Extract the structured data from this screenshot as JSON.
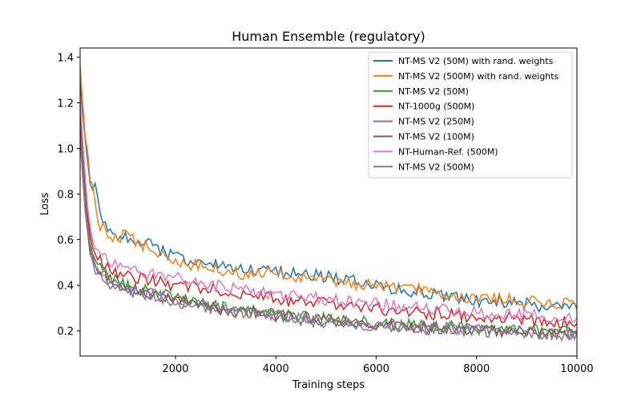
{
  "chart_data": {
    "type": "line",
    "title": "Human Ensemble (regulatory)",
    "xlabel": "Training steps",
    "ylabel": "Loss",
    "xlim": [
      100,
      10000
    ],
    "ylim": [
      0.09,
      1.44
    ],
    "xticks": [
      2000,
      4000,
      6000,
      8000,
      10000
    ],
    "yticks": [
      0.2,
      0.4,
      0.6,
      0.8,
      1.0,
      1.2,
      1.4
    ],
    "xtick_labels": [
      "2000",
      "4000",
      "6000",
      "8000",
      "10000"
    ],
    "ytick_labels": [
      "0.2",
      "0.4",
      "0.6",
      "0.8",
      "1.0",
      "1.2",
      "1.4"
    ],
    "grid": false,
    "legend_position": "top-right",
    "series": [
      {
        "name": "NT-MS V2 (50M) with rand. weights",
        "color": "#1f77b4",
        "x": [
          100,
          200,
          300,
          400,
          500,
          700,
          1000,
          1500,
          2000,
          2500,
          3000,
          3500,
          4000,
          4500,
          5000,
          5500,
          6000,
          6500,
          7000,
          7500,
          8000,
          8500,
          9000,
          9500,
          10000
        ],
        "y": [
          1.29,
          1.02,
          0.86,
          0.83,
          0.69,
          0.62,
          0.61,
          0.58,
          0.52,
          0.5,
          0.48,
          0.46,
          0.46,
          0.45,
          0.44,
          0.42,
          0.4,
          0.38,
          0.37,
          0.35,
          0.33,
          0.33,
          0.32,
          0.3,
          0.3
        ]
      },
      {
        "name": "NT-MS V2 (500M) with rand. weights",
        "color": "#ff7f0e",
        "x": [
          100,
          200,
          300,
          400,
          500,
          700,
          1000,
          1500,
          2000,
          2500,
          3000,
          3500,
          4000,
          4500,
          5000,
          5500,
          6000,
          6500,
          7000,
          7500,
          8000,
          8500,
          9000,
          9500,
          10000
        ],
        "y": [
          1.36,
          1.05,
          0.88,
          0.76,
          0.66,
          0.6,
          0.62,
          0.56,
          0.5,
          0.49,
          0.46,
          0.45,
          0.45,
          0.43,
          0.42,
          0.41,
          0.4,
          0.38,
          0.38,
          0.36,
          0.34,
          0.34,
          0.33,
          0.32,
          0.32
        ]
      },
      {
        "name": "NT-MS V2 (50M)",
        "color": "#2ca02c",
        "x": [
          100,
          200,
          300,
          400,
          500,
          700,
          1000,
          1500,
          2000,
          2500,
          3000,
          3500,
          4000,
          4500,
          5000,
          5500,
          6000,
          6500,
          7000,
          7500,
          8000,
          8500,
          9000,
          9500,
          10000
        ],
        "y": [
          1.12,
          0.78,
          0.58,
          0.5,
          0.48,
          0.43,
          0.4,
          0.37,
          0.35,
          0.32,
          0.3,
          0.29,
          0.27,
          0.26,
          0.25,
          0.24,
          0.24,
          0.23,
          0.22,
          0.22,
          0.21,
          0.21,
          0.2,
          0.2,
          0.19
        ]
      },
      {
        "name": "NT-1000g (500M)",
        "color": "#d62728",
        "x": [
          100,
          200,
          300,
          400,
          500,
          700,
          1000,
          1500,
          2000,
          2500,
          3000,
          3500,
          4000,
          4500,
          5000,
          5500,
          6000,
          6500,
          7000,
          7500,
          8000,
          8500,
          9000,
          9500,
          10000
        ],
        "y": [
          1.2,
          0.82,
          0.62,
          0.55,
          0.52,
          0.46,
          0.44,
          0.42,
          0.4,
          0.39,
          0.37,
          0.36,
          0.34,
          0.33,
          0.32,
          0.31,
          0.3,
          0.29,
          0.28,
          0.27,
          0.26,
          0.26,
          0.25,
          0.24,
          0.24
        ]
      },
      {
        "name": "NT-MS V2 (250M)",
        "color": "#9467bd",
        "x": [
          100,
          200,
          300,
          400,
          500,
          700,
          1000,
          1500,
          2000,
          2500,
          3000,
          3500,
          4000,
          4500,
          5000,
          5500,
          6000,
          6500,
          7000,
          7500,
          8000,
          8500,
          9000,
          9500,
          10000
        ],
        "y": [
          1.04,
          0.72,
          0.54,
          0.46,
          0.45,
          0.41,
          0.38,
          0.36,
          0.33,
          0.31,
          0.29,
          0.28,
          0.26,
          0.25,
          0.24,
          0.23,
          0.22,
          0.22,
          0.21,
          0.21,
          0.2,
          0.2,
          0.19,
          0.19,
          0.18
        ]
      },
      {
        "name": "NT-MS V2 (100M)",
        "color": "#8c564b",
        "x": [
          100,
          200,
          300,
          400,
          500,
          700,
          1000,
          1500,
          2000,
          2500,
          3000,
          3500,
          4000,
          4500,
          5000,
          5500,
          6000,
          6500,
          7000,
          7500,
          8000,
          8500,
          9000,
          9500,
          10000
        ],
        "y": [
          1.08,
          0.74,
          0.56,
          0.47,
          0.46,
          0.42,
          0.39,
          0.36,
          0.34,
          0.31,
          0.29,
          0.28,
          0.27,
          0.26,
          0.25,
          0.24,
          0.23,
          0.22,
          0.22,
          0.21,
          0.21,
          0.2,
          0.2,
          0.19,
          0.19
        ]
      },
      {
        "name": "NT-Human-Ref. (500M)",
        "color": "#e377c2",
        "x": [
          100,
          200,
          300,
          400,
          500,
          700,
          1000,
          1500,
          2000,
          2500,
          3000,
          3500,
          4000,
          4500,
          5000,
          5500,
          6000,
          6500,
          7000,
          7500,
          8000,
          8500,
          9000,
          9500,
          10000
        ],
        "y": [
          1.22,
          0.86,
          0.66,
          0.58,
          0.54,
          0.5,
          0.47,
          0.45,
          0.43,
          0.41,
          0.39,
          0.37,
          0.36,
          0.35,
          0.34,
          0.33,
          0.32,
          0.31,
          0.3,
          0.29,
          0.28,
          0.28,
          0.27,
          0.26,
          0.26
        ]
      },
      {
        "name": "NT-MS V2 (500M)",
        "color": "#7f7f7f",
        "x": [
          100,
          200,
          300,
          400,
          500,
          700,
          1000,
          1500,
          2000,
          2500,
          3000,
          3500,
          4000,
          4500,
          5000,
          5500,
          6000,
          6500,
          7000,
          7500,
          8000,
          8500,
          9000,
          9500,
          10000
        ],
        "y": [
          1.06,
          0.73,
          0.55,
          0.47,
          0.45,
          0.41,
          0.38,
          0.36,
          0.33,
          0.31,
          0.29,
          0.28,
          0.27,
          0.25,
          0.24,
          0.23,
          0.22,
          0.22,
          0.21,
          0.21,
          0.2,
          0.2,
          0.19,
          0.19,
          0.18
        ]
      }
    ]
  }
}
